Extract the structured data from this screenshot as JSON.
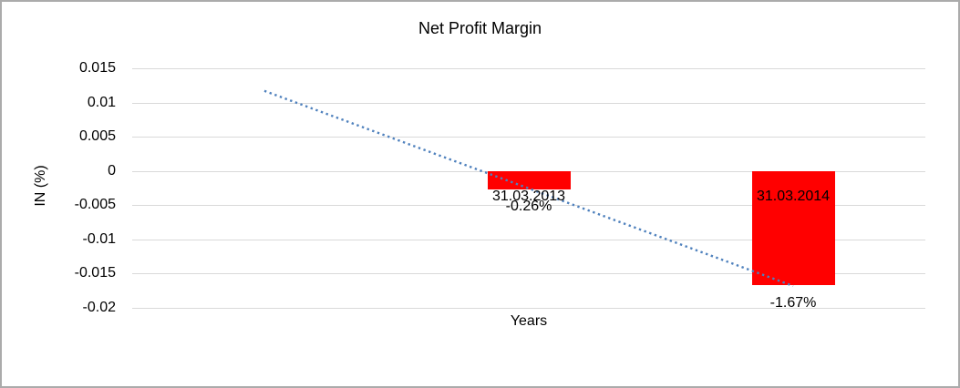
{
  "window": {
    "background": "#FFFFFF",
    "border_color": "#ABABAB"
  },
  "chart_data": {
    "type": "bar",
    "title": "Net Profit Margin",
    "xlabel": "Years",
    "ylabel": "IN (%)",
    "categories": [
      "31.03.2013",
      "31.03.2014"
    ],
    "values": [
      -0.0026,
      -0.0167
    ],
    "data_labels": [
      "-0.26%",
      "-1.67%"
    ],
    "bar_color": "#FF0000",
    "ylim": [
      -0.02,
      0.015
    ],
    "ytick_values": [
      0.015,
      0.01,
      0.005,
      0,
      -0.005,
      -0.01,
      -0.015,
      -0.02
    ],
    "ytick_labels": [
      "0.015",
      "0.01",
      "0.005",
      "0",
      "-0.005",
      "-0.01",
      "-0.015",
      "-0.02"
    ],
    "grid": true,
    "legend": "none",
    "trendline": {
      "style": "dotted",
      "color": "#4F81BD",
      "start_value": 0.0117,
      "end_value": -0.0168
    }
  }
}
